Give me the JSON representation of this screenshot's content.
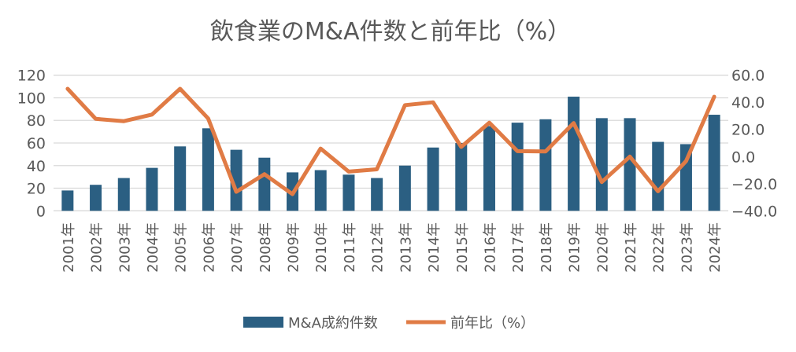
{
  "chart_data": {
    "type": "bar+line",
    "title": "飲食業のM&A件数と前年比（%）",
    "categories": [
      "2001年",
      "2002年",
      "2003年",
      "2004年",
      "2005年",
      "2006年",
      "2007年",
      "2008年",
      "2009年",
      "2010年",
      "2011年",
      "2012年",
      "2013年",
      "2014年",
      "2015年",
      "2016年",
      "2017年",
      "2018年",
      "2019年",
      "2020年",
      "2021年",
      "2022年",
      "2023年",
      "2024年"
    ],
    "series": [
      {
        "name": "M&A成約件数",
        "type": "bar",
        "axis": "left",
        "color": "#2b5f82",
        "values": [
          18,
          23,
          29,
          38,
          57,
          73,
          54,
          47,
          34,
          36,
          32,
          29,
          40,
          56,
          60,
          75,
          78,
          81,
          101,
          82,
          82,
          61,
          59,
          85
        ]
      },
      {
        "name": "前年比（%）",
        "type": "line",
        "axis": "right",
        "color": "#e07b45",
        "values": [
          50.0,
          27.8,
          26.1,
          31.0,
          50.0,
          28.1,
          -26.0,
          -13.0,
          -27.7,
          5.9,
          -11.1,
          -9.4,
          37.9,
          40.0,
          7.1,
          25.0,
          4.0,
          3.8,
          24.7,
          -18.8,
          0.0,
          -25.6,
          -3.3,
          44.1
        ]
      }
    ],
    "y_left": {
      "range": [
        0,
        120
      ],
      "ticks": [
        "0",
        "20",
        "40",
        "60",
        "80",
        "100",
        "120"
      ]
    },
    "y_right": {
      "range": [
        -40,
        60
      ],
      "ticks": [
        "-40.0",
        "-20.0",
        "0.0",
        "20.0",
        "40.0",
        "60.0"
      ]
    },
    "grid": true,
    "legend": "bottom"
  }
}
